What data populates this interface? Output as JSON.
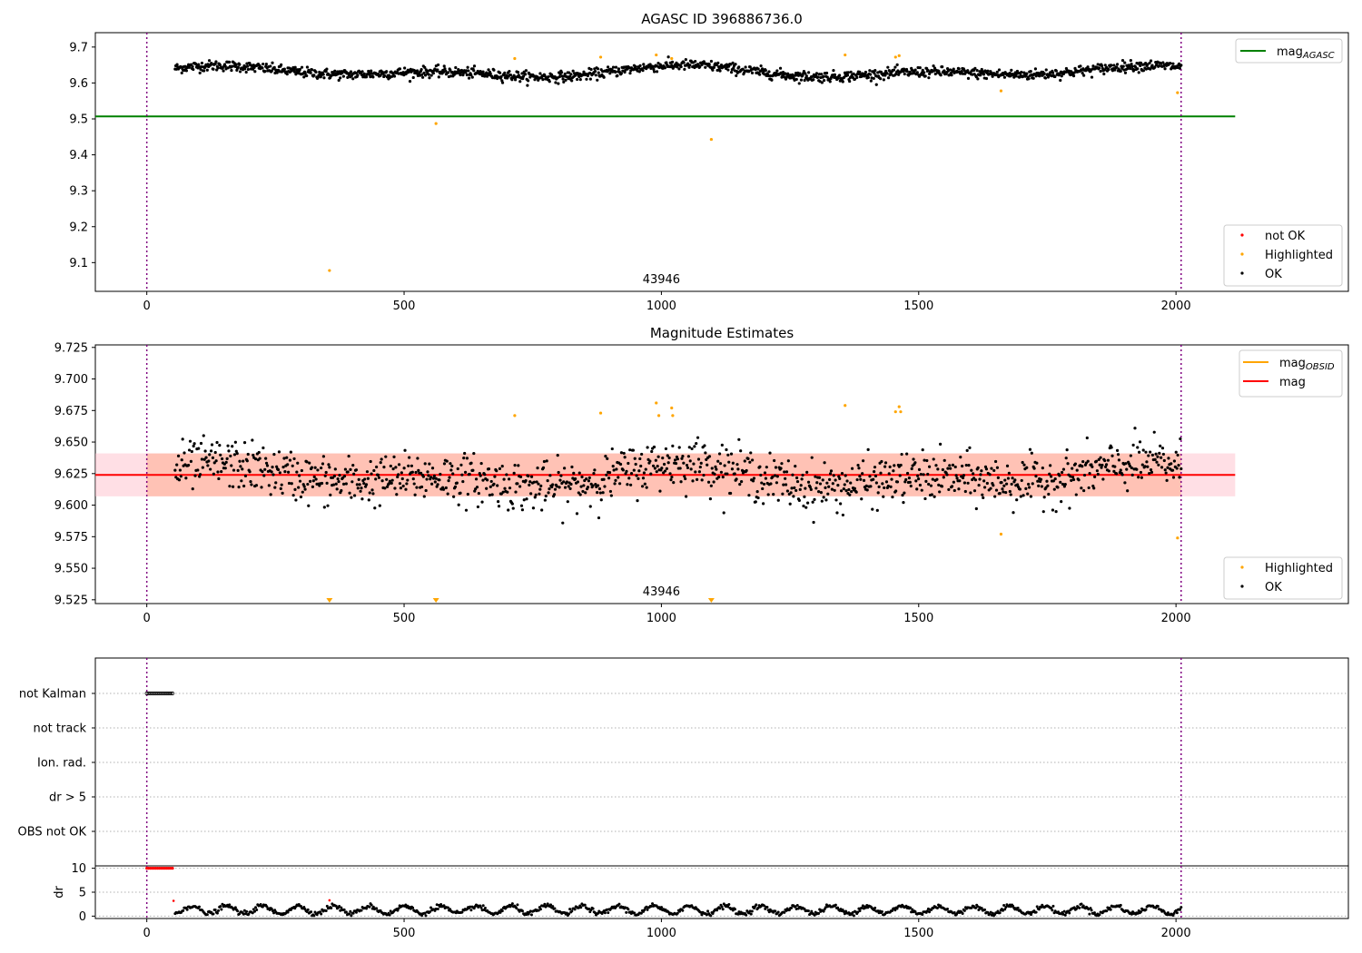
{
  "colors": {
    "axis": "#000000",
    "agasc_line": "#008000",
    "ok": "#000000",
    "highlighted": "#ffa500",
    "not_ok": "#ff0000",
    "obsid": "#ffa500",
    "mag_line": "#ff0000",
    "mag_band": "#ffc0cb",
    "obsid_band": "#ffa07a",
    "vline": "#800080",
    "grid": "#b0b0b0"
  },
  "chart_data": [
    {
      "type": "scatter",
      "title": "AGASC ID 396886736.0",
      "xlim": [
        -100,
        2335
      ],
      "ylim": [
        9.02,
        9.74
      ],
      "xticks": [
        0,
        500,
        1000,
        1500,
        2000
      ],
      "yticks": [
        9.1,
        9.2,
        9.3,
        9.4,
        9.5,
        9.6,
        9.7
      ],
      "xlabel": "",
      "ylabel": "",
      "obsid_label": "43946",
      "obsid_label_x": 1000,
      "vlines": [
        0,
        2010
      ],
      "hline": {
        "y": 9.507,
        "x0": -100,
        "x1": 2115,
        "label": "mag",
        "label_sub": "AGASC"
      },
      "ok_band": {
        "center": 9.63,
        "amp": 0.02,
        "noise": 0.012,
        "x0": 55,
        "x1": 2010,
        "n": 1500
      },
      "highlighted_points": [
        [
          355,
          9.078
        ],
        [
          562,
          9.487
        ],
        [
          715,
          9.668
        ],
        [
          882,
          9.672
        ],
        [
          990,
          9.678
        ],
        [
          1020,
          9.668
        ],
        [
          1097,
          9.443
        ],
        [
          1357,
          9.678
        ],
        [
          1455,
          9.672
        ],
        [
          1462,
          9.676
        ],
        [
          1660,
          9.578
        ],
        [
          2003,
          9.573
        ]
      ],
      "legend_top": [
        {
          "label": "mag",
          "sub": "AGASC",
          "kind": "line",
          "color": "#008000"
        }
      ],
      "legend_bottom": [
        {
          "label": "not OK",
          "kind": "dot",
          "color": "#ff0000"
        },
        {
          "label": "Highlighted",
          "kind": "dot",
          "color": "#ffa500"
        },
        {
          "label": "OK",
          "kind": "dot",
          "color": "#000000"
        }
      ]
    },
    {
      "type": "scatter",
      "title": "Magnitude Estimates",
      "xlim": [
        -100,
        2335
      ],
      "ylim": [
        9.522,
        9.727
      ],
      "xticks": [
        0,
        500,
        1000,
        1500,
        2000
      ],
      "yticks": [
        9.525,
        9.55,
        9.575,
        9.6,
        9.625,
        9.65,
        9.675,
        9.7,
        9.725
      ],
      "ytick_labels": [
        "9.525",
        "9.550",
        "9.575",
        "9.600",
        "9.625",
        "9.650",
        "9.675",
        "9.700",
        "9.725"
      ],
      "xlabel": "",
      "ylabel": "",
      "obsid_label": "43946",
      "obsid_label_x": 1000,
      "vlines": [
        0,
        2010
      ],
      "mag": {
        "value": 9.624,
        "band_lo": 9.607,
        "band_hi": 9.641,
        "x0": -100,
        "x1": 2115
      },
      "obsid_band": {
        "lo": 9.607,
        "hi": 9.641,
        "x0": 0,
        "x1": 2010
      },
      "ok_band": {
        "center": 9.622,
        "amp": 0.012,
        "noise": 0.016,
        "x0": 55,
        "x1": 2010,
        "n": 1200
      },
      "highlighted_points": [
        [
          715,
          9.671
        ],
        [
          882,
          9.673
        ],
        [
          990,
          9.681
        ],
        [
          995,
          9.671
        ],
        [
          1020,
          9.677
        ],
        [
          1022,
          9.671
        ],
        [
          1357,
          9.679
        ],
        [
          1455,
          9.674
        ],
        [
          1462,
          9.678
        ],
        [
          1465,
          9.674
        ],
        [
          1660,
          9.577
        ],
        [
          2003,
          9.574
        ]
      ],
      "offscale_markers": [
        355,
        562,
        1097
      ],
      "legend_top": [
        {
          "label": "mag",
          "sub": "OBSID",
          "kind": "line",
          "color": "#ffa500"
        },
        {
          "label": "mag",
          "sub": "",
          "kind": "line",
          "color": "#ff0000"
        }
      ],
      "legend_bottom": [
        {
          "label": "Highlighted",
          "kind": "dot",
          "color": "#ffa500"
        },
        {
          "label": "OK",
          "kind": "dot",
          "color": "#000000"
        }
      ]
    },
    {
      "type": "scatter",
      "title": "",
      "xlim": [
        -100,
        2335
      ],
      "xticks": [
        0,
        500,
        1000,
        1500,
        2000
      ],
      "categories": [
        "not Kalman",
        "not track",
        "Ion. rad.",
        "dr > 5",
        "OBS not OK"
      ],
      "flagged": {
        "category": "not Kalman",
        "x0": 0,
        "x1": 50,
        "n": 15
      },
      "vlines": [
        0,
        2010
      ]
    },
    {
      "type": "scatter",
      "title": "",
      "xlim": [
        -100,
        2335
      ],
      "ylim": [
        -0.5,
        10.5
      ],
      "yticks": [
        0,
        5,
        10
      ],
      "xticks": [
        0,
        500,
        1000,
        1500,
        2000
      ],
      "xlabel": "",
      "ylabel": "dr",
      "vlines": [
        0,
        2010
      ],
      "saturated": {
        "value": 10,
        "x0": 0,
        "x1": 50,
        "n": 15
      },
      "not_ok_points": [
        [
          52,
          3.2
        ],
        [
          355,
          3.3
        ]
      ],
      "ok_band": {
        "center": 1.3,
        "amp": 0.8,
        "noise": 0.25,
        "x0": 55,
        "x1": 2010,
        "n": 1000
      }
    }
  ]
}
